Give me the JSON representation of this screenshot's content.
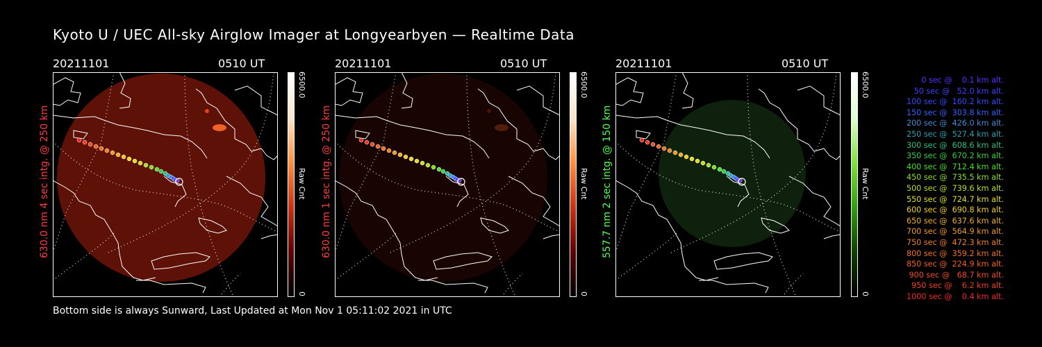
{
  "title": "Kyoto U / UEC All-sky Airglow Imager at Longyearbyen — Realtime Data",
  "footer": "Bottom side is always Sunward, Last Updated at Mon Nov  1 05:11:02 2021 in UTC",
  "colors": {
    "red_label": "#ff3c3c",
    "green_label": "#55ff55",
    "red_glow": "#6e1408",
    "green_glow": "#173c17"
  },
  "panels": [
    {
      "date": "20211101",
      "time": "0510 UT",
      "side_label": "630.0 nm 4 sec intg. @ 250 km",
      "colorbar_max": "6500.0",
      "colorbar_min": "0",
      "colorbar_unit": "Raw Cnt",
      "colormap": "red"
    },
    {
      "date": "20211101",
      "time": "0510 UT",
      "side_label": "630.0 nm 1 sec intg. @ 250 km",
      "colorbar_max": "6500.0",
      "colorbar_min": "0",
      "colorbar_unit": "Raw Cnt",
      "colormap": "red"
    },
    {
      "date": "20211101",
      "time": "0510 UT",
      "side_label": "557.7 nm 2 sec intg. @ 150 km",
      "colorbar_max": "6500.0",
      "colorbar_min": "0",
      "colorbar_unit": "Raw Cnt",
      "colormap": "green"
    }
  ],
  "legend": [
    {
      "text": "   0 sec @    0.1 km alt.",
      "color": "#5a2cff"
    },
    {
      "text": "  50 sec @   52.0 km alt.",
      "color": "#3f3fff"
    },
    {
      "text": " 100 sec @  160.2 km alt.",
      "color": "#2f4aff"
    },
    {
      "text": " 150 sec @  303.8 km alt.",
      "color": "#2f60ff"
    },
    {
      "text": " 200 sec @  426.0 km alt.",
      "color": "#3a8cd8"
    },
    {
      "text": " 250 sec @  527.4 km alt.",
      "color": "#2aa0b0"
    },
    {
      "text": " 300 sec @  608.6 km alt.",
      "color": "#28c080"
    },
    {
      "text": " 350 sec @  670.2 km alt.",
      "color": "#30d040"
    },
    {
      "text": " 400 sec @  712.4 km alt.",
      "color": "#40e020"
    },
    {
      "text": " 450 sec @  735.5 km alt.",
      "color": "#8ae020"
    },
    {
      "text": " 500 sec @  739.6 km alt.",
      "color": "#b8e020"
    },
    {
      "text": " 550 sec @  724.7 km alt.",
      "color": "#e0e020"
    },
    {
      "text": " 600 sec @  690.8 km alt.",
      "color": "#f0d020"
    },
    {
      "text": " 650 sec @  637.6 km alt.",
      "color": "#f0b020"
    },
    {
      "text": " 700 sec @  564.9 km alt.",
      "color": "#f09820"
    },
    {
      "text": " 750 sec @  472.3 km alt.",
      "color": "#f08020"
    },
    {
      "text": " 800 sec @  359.2 km alt.",
      "color": "#f07020"
    },
    {
      "text": " 850 sec @  224.9 km alt.",
      "color": "#f06020"
    },
    {
      "text": " 900 sec @   68.7 km alt.",
      "color": "#f04a20"
    },
    {
      "text": " 950 sec @    6.2 km alt.",
      "color": "#f03a20"
    },
    {
      "text": "1000 sec @    0.4 km alt.",
      "color": "#f02820"
    }
  ]
}
